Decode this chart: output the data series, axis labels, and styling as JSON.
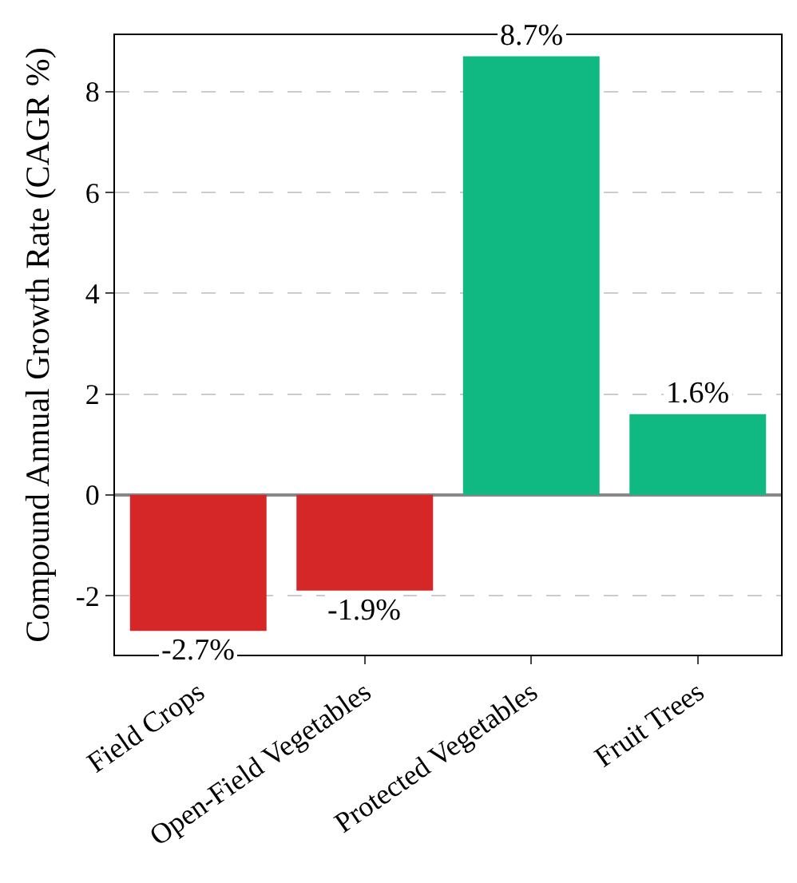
{
  "chart_data": {
    "type": "bar",
    "ylabel": "Compound Annual Growth Rate (CAGR %)",
    "categories": [
      "Field Crops",
      "Open-Field Vegetables",
      "Protected Vegetables",
      "Fruit Trees"
    ],
    "values": [
      -2.7,
      -1.9,
      8.7,
      1.6
    ],
    "colors": [
      "#d62728",
      "#d62728",
      "#10b981",
      "#10b981"
    ],
    "value_labels": [
      "-2.7%",
      "-1.9%",
      "8.7%",
      "1.6%"
    ],
    "ylim": [
      -3.17,
      9.12
    ],
    "yticks": [
      -2,
      0,
      2,
      4,
      6,
      8
    ],
    "grid": "y"
  }
}
